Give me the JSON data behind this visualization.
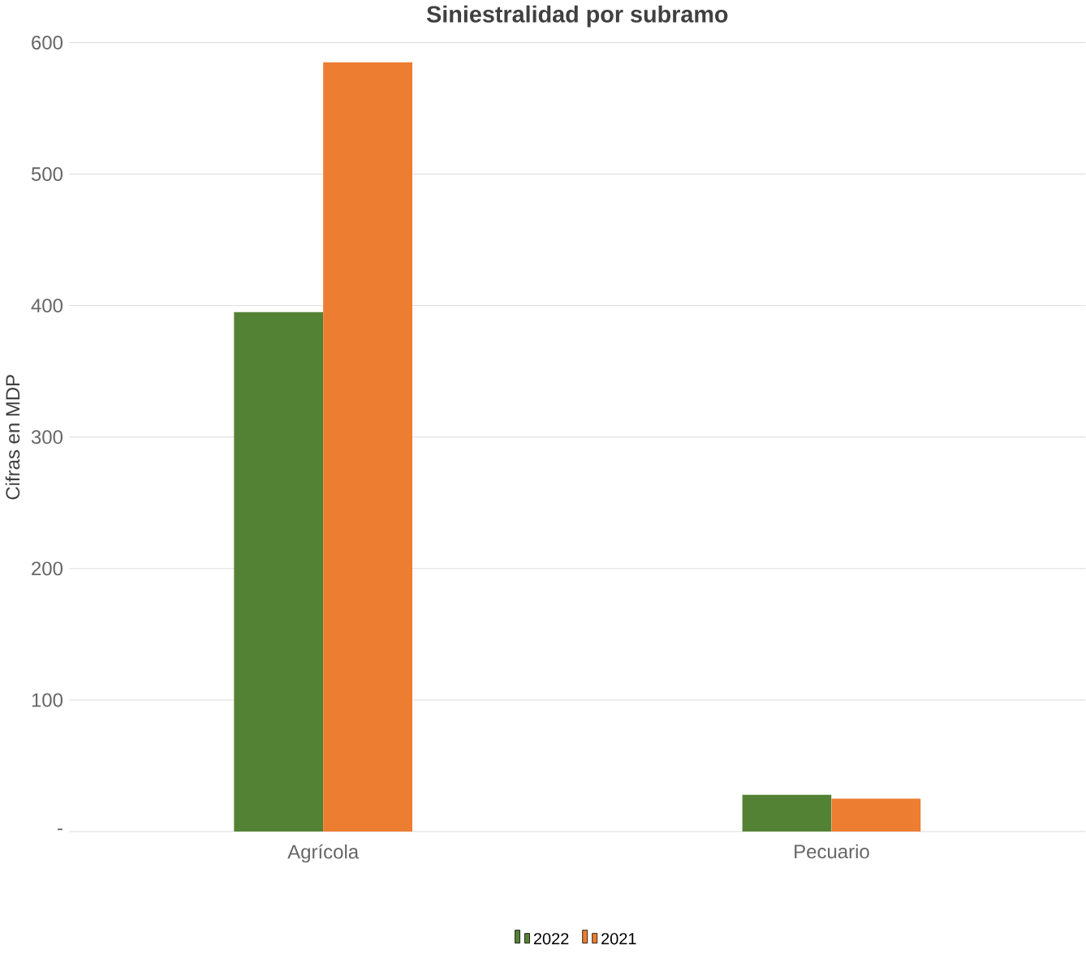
{
  "chart_data": {
    "type": "bar",
    "title": "Siniestralidad por subramo",
    "ylabel": "Cifras en MDP",
    "categories": [
      "Agrícola",
      "Pecuario"
    ],
    "series": [
      {
        "name": "2022",
        "color": "#548235",
        "values": [
          395,
          28
        ]
      },
      {
        "name": "2021",
        "color": "#ed7d31",
        "values": [
          585,
          25
        ]
      }
    ],
    "ylim": [
      0,
      600
    ],
    "yticks": [
      {
        "value": 0,
        "label": "-"
      },
      100,
      200,
      300,
      400,
      500,
      600
    ],
    "grid": "y",
    "legend": "bottom"
  }
}
